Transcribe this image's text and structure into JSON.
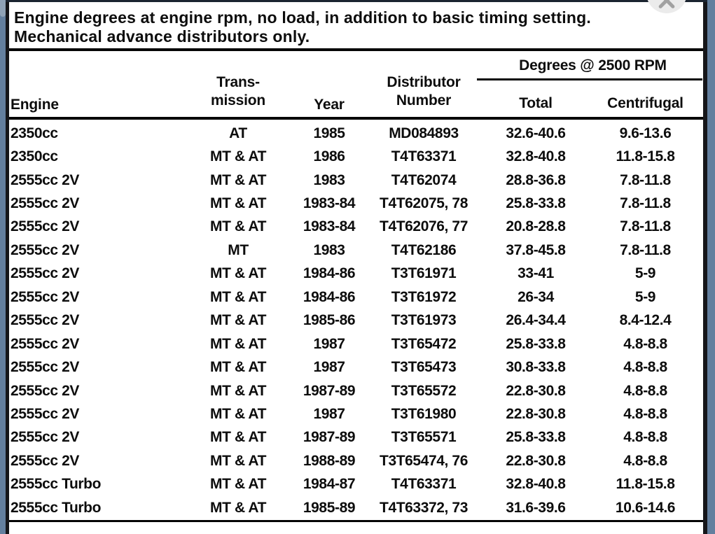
{
  "colors": {
    "frame_blue": "#637f9e",
    "page_background": "#ffffff",
    "text": "#0d0d0d",
    "close_button_background": "#ebebeb",
    "close_button_x": "#a1a1a1"
  },
  "close_button": {
    "icon": "x-close-icon"
  },
  "title": {
    "line1": "Engine degrees at engine rpm, no load, in addition to basic timing setting.",
    "line2": "Mechanical advance distributors only."
  },
  "table": {
    "group_header": "Degrees @ 2500 RPM",
    "headers": {
      "engine": "Engine",
      "transmission_line1": "Trans-",
      "transmission_line2": "mission",
      "year": "Year",
      "distributor_line1": "Distributor",
      "distributor_line2": "Number",
      "total": "Total",
      "centrifugal": "Centrifugal"
    },
    "column_keys": [
      "engine",
      "transmission",
      "year",
      "distributor-number",
      "total",
      "centrifugal"
    ],
    "rows": [
      [
        "2350cc",
        "AT",
        "1985",
        "MD084893",
        "32.6-40.6",
        "9.6-13.6"
      ],
      [
        "2350cc",
        "MT & AT",
        "1986",
        "T4T63371",
        "32.8-40.8",
        "11.8-15.8"
      ],
      [
        "2555cc 2V",
        "MT & AT",
        "1983",
        "T4T62074",
        "28.8-36.8",
        "7.8-11.8"
      ],
      [
        "2555cc 2V",
        "MT & AT",
        "1983-84",
        "T4T62075, 78",
        "25.8-33.8",
        "7.8-11.8"
      ],
      [
        "2555cc 2V",
        "MT & AT",
        "1983-84",
        "T4T62076, 77",
        "20.8-28.8",
        "7.8-11.8"
      ],
      [
        "2555cc 2V",
        "MT",
        "1983",
        "T4T62186",
        "37.8-45.8",
        "7.8-11.8"
      ],
      [
        "2555cc 2V",
        "MT & AT",
        "1984-86",
        "T3T61971",
        "33-41",
        "5-9"
      ],
      [
        "2555cc 2V",
        "MT & AT",
        "1984-86",
        "T3T61972",
        "26-34",
        "5-9"
      ],
      [
        "2555cc 2V",
        "MT & AT",
        "1985-86",
        "T3T61973",
        "26.4-34.4",
        "8.4-12.4"
      ],
      [
        "2555cc 2V",
        "MT & AT",
        "1987",
        "T3T65472",
        "25.8-33.8",
        "4.8-8.8"
      ],
      [
        "2555cc 2V",
        "MT & AT",
        "1987",
        "T3T65473",
        "30.8-33.8",
        "4.8-8.8"
      ],
      [
        "2555cc 2V",
        "MT & AT",
        "1987-89",
        "T3T65572",
        "22.8-30.8",
        "4.8-8.8"
      ],
      [
        "2555cc 2V",
        "MT & AT",
        "1987",
        "T3T61980",
        "22.8-30.8",
        "4.8-8.8"
      ],
      [
        "2555cc 2V",
        "MT & AT",
        "1987-89",
        "T3T65571",
        "25.8-33.8",
        "4.8-8.8"
      ],
      [
        "2555cc 2V",
        "MT & AT",
        "1988-89",
        "T3T65474, 76",
        "22.8-30.8",
        "4.8-8.8"
      ],
      [
        "2555cc Turbo",
        "MT & AT",
        "1984-87",
        "T4T63371",
        "32.8-40.8",
        "11.8-15.8"
      ],
      [
        "2555cc Turbo",
        "MT & AT",
        "1985-89",
        "T4T63372, 73",
        "31.6-39.6",
        "10.6-14.6"
      ]
    ]
  }
}
